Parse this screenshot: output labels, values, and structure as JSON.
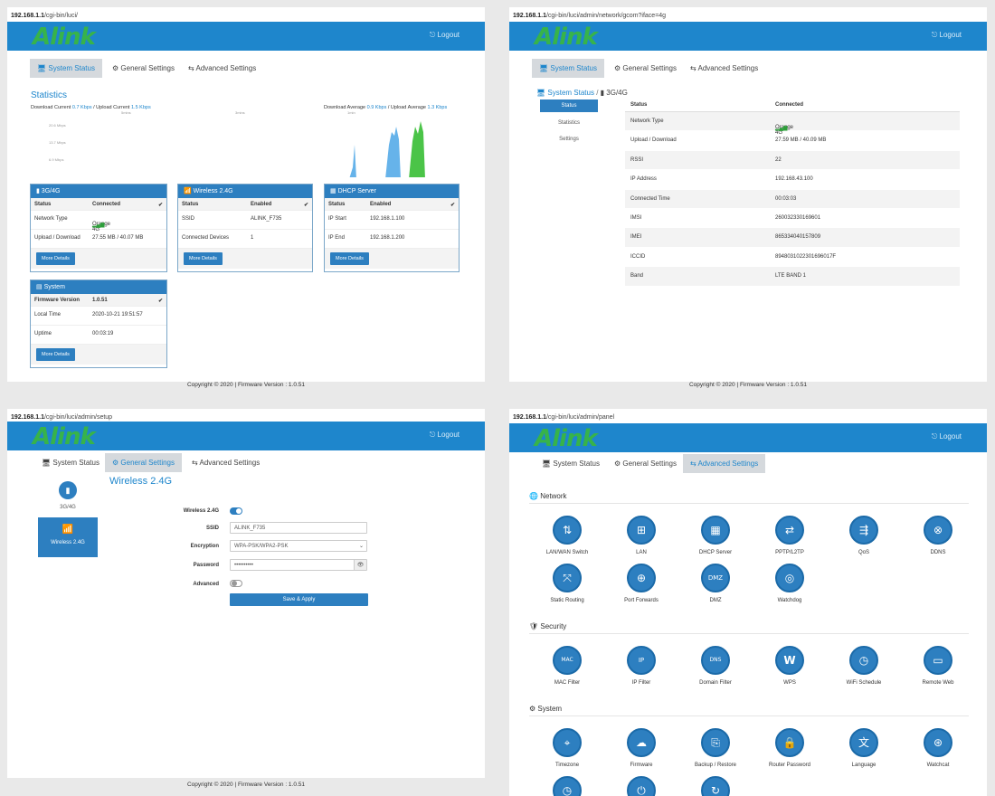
{
  "brand": {
    "logo": "Alink",
    "logout": "⎋ Logout"
  },
  "tabs": {
    "status": "System Status",
    "general": "General Settings",
    "advanced": "Advanced Settings"
  },
  "footer": "Copyright © 2020  |  Firmware Version : 1.0.51",
  "pane1": {
    "url_host": "192.168.1.1",
    "url_path": "/cgi-bin/luci/",
    "stats": {
      "title": "Statistics",
      "left_prefix": "Download Current",
      "left_dl": "0.7 Kbps",
      "left_mid": " / Upload Current",
      "left_ul": "1.5 Kbps",
      "right_prefix": "Download Average",
      "right_dl": "0.9 Kbps",
      "right_mid": " / Upload Average",
      "right_ul": "1.3 Kbps",
      "time_labels": [
        "5mins",
        "3mins",
        "1min"
      ],
      "y_labels": [
        "20.6 Mbps",
        "13.7 Mbps",
        "6.9 Mbps"
      ]
    },
    "cards": {
      "g4": {
        "title": "3G/4G",
        "h1": "Status",
        "h2": "Connected",
        "r1a": "Network Type",
        "r1b": "Orange 4G",
        "r2a": "Upload / Download",
        "r2b": "27.55 MB / 40.07 MB",
        "btn": "More Details"
      },
      "wifi": {
        "title": "Wireless 2.4G",
        "h1": "Status",
        "h2": "Enabled",
        "r1a": "SSID",
        "r1b": "ALINK_F735",
        "r2a": "Connected Devices",
        "r2b": "1",
        "btn": "More Details"
      },
      "dhcp": {
        "title": "DHCP Server",
        "h1": "Status",
        "h2": "Enabled",
        "r1a": "IP Start",
        "r1b": "192.168.1.100",
        "r2a": "IP End",
        "r2b": "192.168.1.200",
        "btn": "More Details"
      },
      "sys": {
        "title": "System",
        "h1": "Firmware Version",
        "h2": "1.0.51",
        "r1a": "Local Time",
        "r1b": "2020-10-21 19:51:57",
        "r2a": "Uptime",
        "r2b": "00:03:19",
        "btn": "More Details"
      }
    }
  },
  "pane2": {
    "url_host": "192.168.1.1",
    "url_path": "/cgi-bin/luci/admin/network/gcom?iface=4g",
    "crumb_a": "System Status",
    "crumb_sep": " / ",
    "crumb_b": "3G/4G",
    "side": [
      "Status",
      "Statistics",
      "Settings"
    ],
    "rows": [
      {
        "k": "Status",
        "v": "Connected"
      },
      {
        "k": "Network Type",
        "v": "Orange 4G"
      },
      {
        "k": "Upload / Download",
        "v": "27.59 MB / 40.09 MB"
      },
      {
        "k": "RSSI",
        "v": "22"
      },
      {
        "k": "IP Address",
        "v": "192.168.43.100"
      },
      {
        "k": "Connected Time",
        "v": "00:03:03"
      },
      {
        "k": "IMSI",
        "v": "260032330169601"
      },
      {
        "k": "IMEI",
        "v": "865334040157809"
      },
      {
        "k": "ICCID",
        "v": "894803102230169601​7F"
      },
      {
        "k": "Band",
        "v": "LTE BAND 1"
      }
    ]
  },
  "pane3": {
    "url_host": "192.168.1.1",
    "url_path": "/cgi-bin/luci/admin/setup",
    "side_a": "3G/4G",
    "side_b": "Wireless 2.4G",
    "title": "Wireless 2.4G",
    "l_wireless": "Wireless 2.4G",
    "l_ssid": "SSID",
    "l_enc": "Encryption",
    "l_pwd": "Password",
    "l_adv": "Advanced",
    "ssid": "ALINK_F735",
    "encryption": "WPA-PSK/WPA2-PSK",
    "password": "••••••••••",
    "save": "Save & Apply"
  },
  "pane4": {
    "url_host": "192.168.1.1",
    "url_path": "/cgi-bin/luci/admin/panel",
    "sec_network": "Network",
    "sec_security": "Security",
    "sec_system": "System",
    "network": [
      "LAN/WAN Switch",
      "LAN",
      "DHCP Server",
      "PPTP/L2TP",
      "QoS",
      "DDNS",
      "Static Routing",
      "Port Forwards",
      "DMZ",
      "Watchdog"
    ],
    "security": [
      "MAC Filter",
      "IP Filter",
      "Domain Filter",
      "WPS",
      "WiFi Schedule",
      "Remote Web"
    ],
    "system": [
      "Timezone",
      "Firmware",
      "Backup / Restore",
      "Router Password",
      "Language",
      "Watchcat"
    ],
    "glyphs": {
      "mac": "MAC",
      "ip": "IP",
      "dns": "DNS",
      "dmz": "DMZ",
      "wps": "W"
    }
  },
  "colors": {
    "accent": "#1e86cc",
    "button": "#2d7fc0",
    "logo": "#37b34a",
    "chart_dl": "#66b3ea",
    "chart_ul": "#4bc448"
  }
}
